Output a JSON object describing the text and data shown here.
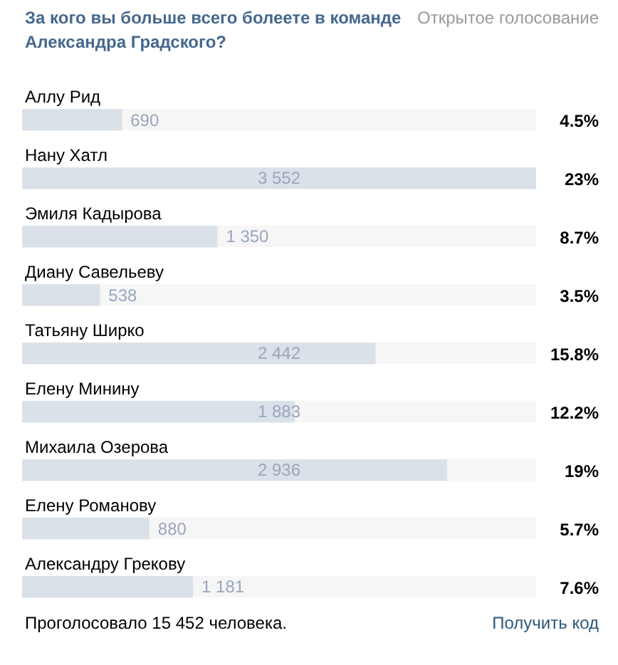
{
  "chart_data": {
    "type": "bar",
    "orientation": "horizontal",
    "title": "За кого вы больше всего болеете в команде Александра Градского?",
    "subtitle": "Открытое голосование",
    "categories": [
      "Аллу Рид",
      "Нану Хатл",
      "Эмиля Кадырова",
      "Диану Савельеву",
      "Татьяну Ширко",
      "Елену Минину",
      "Михаила Озерова",
      "Елену Романову",
      "Александру Грекову"
    ],
    "values": [
      690,
      3552,
      1350,
      538,
      2442,
      1883,
      2936,
      880,
      1181
    ],
    "value_labels": [
      "690",
      "3 552",
      "1 350",
      "538",
      "2 442",
      "1 883",
      "2 936",
      "880",
      "1 181"
    ],
    "color": "#dae1e8",
    "xlim": [
      0,
      3552
    ],
    "tick_labels": "y",
    "grid": false,
    "annotations": [
      "4.5%",
      "23%",
      "8.7%",
      "3.5%",
      "15.8%",
      "12.2%",
      "19%",
      "5.7%",
      "7.6%",
      "Проголосовало 15 452 человека.",
      "Получить код"
    ]
  }
}
